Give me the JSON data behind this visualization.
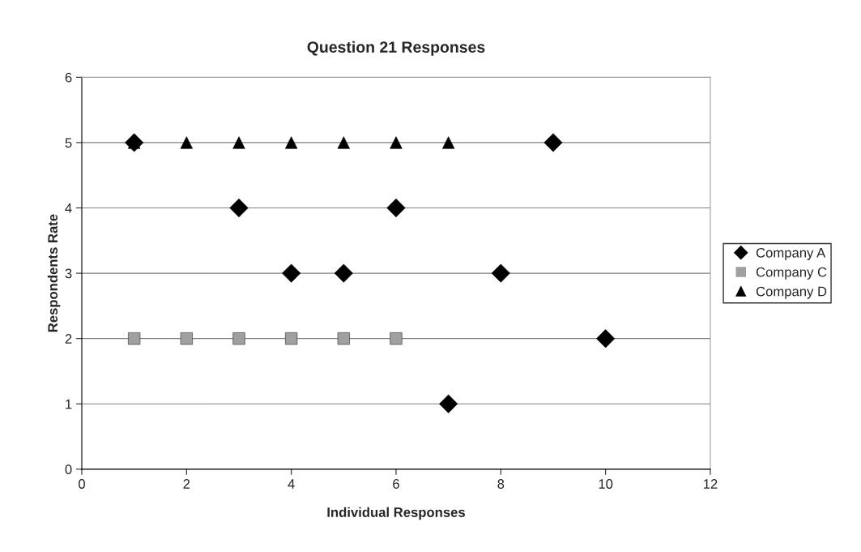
{
  "chart_data": {
    "type": "scatter",
    "title": "Question 21 Responses",
    "xlabel": "Individual Responses",
    "ylabel": "Respondents Rate",
    "series": [
      {
        "name": "Company A",
        "color": "#000000",
        "marker": "diamond",
        "x": [
          1,
          2,
          3,
          4,
          5,
          6,
          7,
          8,
          9,
          10
        ],
        "values": [
          5,
          null,
          4,
          3,
          3,
          4,
          1,
          3,
          5,
          2
        ]
      },
      {
        "name": "Company C",
        "color": "#a0a0a0",
        "marker": "square",
        "x": [
          1,
          2,
          3,
          4,
          5,
          6
        ],
        "values": [
          2,
          2,
          2,
          2,
          2,
          2
        ]
      },
      {
        "name": "Company D",
        "color": "#000000",
        "marker": "triangle",
        "x": [
          1,
          2,
          3,
          4,
          5,
          6,
          7
        ],
        "values": [
          5,
          5,
          5,
          5,
          5,
          5,
          5
        ]
      }
    ],
    "xlim": [
      0,
      12
    ],
    "xticks": [
      0,
      2,
      4,
      6,
      8,
      10,
      12
    ],
    "ylim": [
      0,
      6
    ],
    "yticks": [
      0,
      1,
      2,
      3,
      4,
      5,
      6
    ],
    "grid": "y",
    "legend": "right"
  }
}
